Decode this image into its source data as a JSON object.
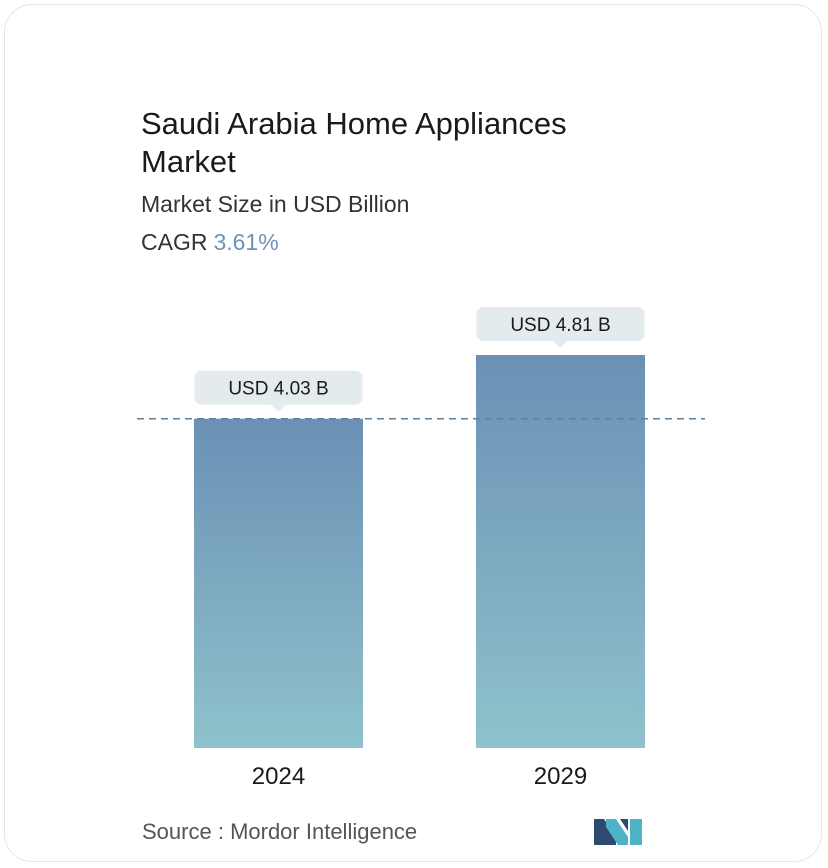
{
  "header": {
    "title": "Saudi Arabia Home Appliances Market",
    "subtitle": "Market Size in USD Billion",
    "cagr_label": "CAGR",
    "cagr_value": "3.61%"
  },
  "footer": {
    "source_label": "Source :",
    "source_name": "Mordor Intelligence"
  },
  "colors": {
    "bar_top": "#6b90b5",
    "bar_bottom": "#8fc2cc",
    "label_bg": "#e3ebee",
    "dashed_line": "#5e7f9e",
    "cagr_accent": "#6f93b8"
  },
  "chart_data": {
    "type": "bar",
    "title": "Saudi Arabia Home Appliances Market",
    "subtitle": "Market Size in USD Billion",
    "categories": [
      "2024",
      "2029"
    ],
    "values": [
      4.03,
      4.81
    ],
    "data_labels": [
      "USD 4.03 B",
      "USD 4.81 B"
    ],
    "reference_line": 4.03,
    "ylim": [
      0,
      4.81
    ],
    "grid": false,
    "legend": "none"
  }
}
